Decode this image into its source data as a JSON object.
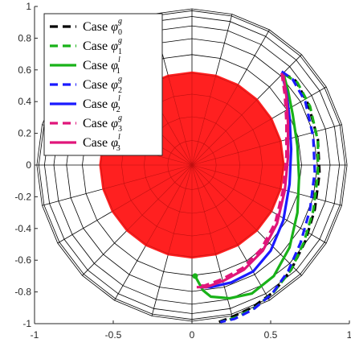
{
  "chart_data": {
    "type": "line",
    "xlim": [
      -1,
      1
    ],
    "ylim": [
      -1,
      1
    ],
    "xticks": [
      -1,
      -0.5,
      0,
      0.5,
      1
    ],
    "yticks": [
      -1,
      -0.8,
      -0.6,
      -0.4,
      -0.2,
      0,
      0.2,
      0.4,
      0.6,
      0.8,
      1
    ],
    "xtick_labels": [
      "-1",
      "-0.5",
      "0",
      "0.5",
      "1"
    ],
    "ytick_labels": [
      "-1",
      "-0.8",
      "-0.6",
      "-0.4",
      "-0.2",
      "0",
      "0.2",
      "0.4",
      "0.6",
      "0.8",
      "1"
    ],
    "grid": "sphere wireframe (polar grid)",
    "colors": {
      "disc": "#ff2020",
      "wire": "#000000",
      "case0g": "#000000",
      "case1g": "#19b219",
      "case1l": "#19b219",
      "case2g": "#1a1aff",
      "case2l": "#1a1aff",
      "case3g": "#e0167a",
      "case3l": "#e0167a"
    },
    "disc": {
      "center": [
        0,
        0
      ],
      "radius": 0.59
    },
    "series": [
      {
        "name": "Case φ_0^g",
        "sym": "φ",
        "sub": "0",
        "sup": "g",
        "style": "dashed",
        "color": "#000000",
        "x": [
          0.58,
          0.66,
          0.74,
          0.8,
          0.81,
          0.78,
          0.72,
          0.63,
          0.52,
          0.38,
          0.25,
          0.17
        ],
        "y": [
          0.58,
          0.53,
          0.38,
          0.16,
          -0.05,
          -0.28,
          -0.48,
          -0.66,
          -0.8,
          -0.9,
          -0.96,
          -0.99
        ]
      },
      {
        "name": "Case φ_1^g",
        "sym": "φ",
        "sub": "1",
        "sup": "g",
        "style": "dashed",
        "color": "#19b219",
        "x": [
          0.59,
          0.67,
          0.75,
          0.8,
          0.8,
          0.77,
          0.71,
          0.63,
          0.52,
          0.4,
          0.28,
          0.18
        ],
        "y": [
          0.57,
          0.52,
          0.37,
          0.15,
          -0.06,
          -0.29,
          -0.49,
          -0.66,
          -0.8,
          -0.9,
          -0.96,
          -0.99
        ]
      },
      {
        "name": "Case φ_1^l",
        "sym": "φ",
        "sub": "1",
        "sup": "l",
        "style": "solid",
        "color": "#19b219",
        "x": [
          0.58,
          0.61,
          0.64,
          0.67,
          0.68,
          0.67,
          0.62,
          0.52,
          0.38,
          0.24,
          0.12,
          0.07,
          0.02
        ],
        "y": [
          0.58,
          0.47,
          0.32,
          0.12,
          -0.08,
          -0.3,
          -0.52,
          -0.7,
          -0.81,
          -0.84,
          -0.83,
          -0.79,
          -0.7
        ]
      },
      {
        "name": "Case φ_2^g",
        "sym": "φ",
        "sub": "2",
        "sup": "g",
        "style": "dashed",
        "color": "#1a1aff",
        "x": [
          0.57,
          0.64,
          0.72,
          0.77,
          0.78,
          0.75,
          0.69,
          0.61,
          0.51,
          0.39,
          0.27,
          0.18
        ],
        "y": [
          0.59,
          0.54,
          0.4,
          0.18,
          -0.04,
          -0.28,
          -0.49,
          -0.67,
          -0.81,
          -0.91,
          -0.97,
          -0.99
        ]
      },
      {
        "name": "Case φ_2^l",
        "sym": "φ",
        "sub": "2",
        "sup": "l",
        "style": "solid",
        "color": "#1a1aff",
        "x": [
          0.57,
          0.6,
          0.62,
          0.63,
          0.62,
          0.58,
          0.5,
          0.39,
          0.25,
          0.12,
          0.05
        ],
        "y": [
          0.58,
          0.46,
          0.3,
          0.1,
          -0.12,
          -0.35,
          -0.54,
          -0.67,
          -0.74,
          -0.77,
          -0.77
        ]
      },
      {
        "name": "Case φ_3^g",
        "sym": "φ",
        "sub": "3",
        "sup": "g",
        "style": "dashed",
        "color": "#e0167a",
        "x": [
          0.57,
          0.59,
          0.6,
          0.6,
          0.58,
          0.53,
          0.44,
          0.32,
          0.19,
          0.08,
          0.03
        ],
        "y": [
          0.58,
          0.44,
          0.27,
          0.06,
          -0.15,
          -0.36,
          -0.53,
          -0.65,
          -0.72,
          -0.76,
          -0.76
        ]
      },
      {
        "name": "Case φ_3^l",
        "sym": "φ",
        "sub": "3",
        "sup": "l",
        "style": "solid",
        "color": "#e0167a",
        "x": [
          0.58,
          0.6,
          0.61,
          0.61,
          0.59,
          0.54,
          0.45,
          0.33,
          0.2,
          0.09,
          0.03
        ],
        "y": [
          0.57,
          0.43,
          0.26,
          0.05,
          -0.16,
          -0.37,
          -0.54,
          -0.66,
          -0.73,
          -0.77,
          -0.77
        ]
      }
    ]
  }
}
